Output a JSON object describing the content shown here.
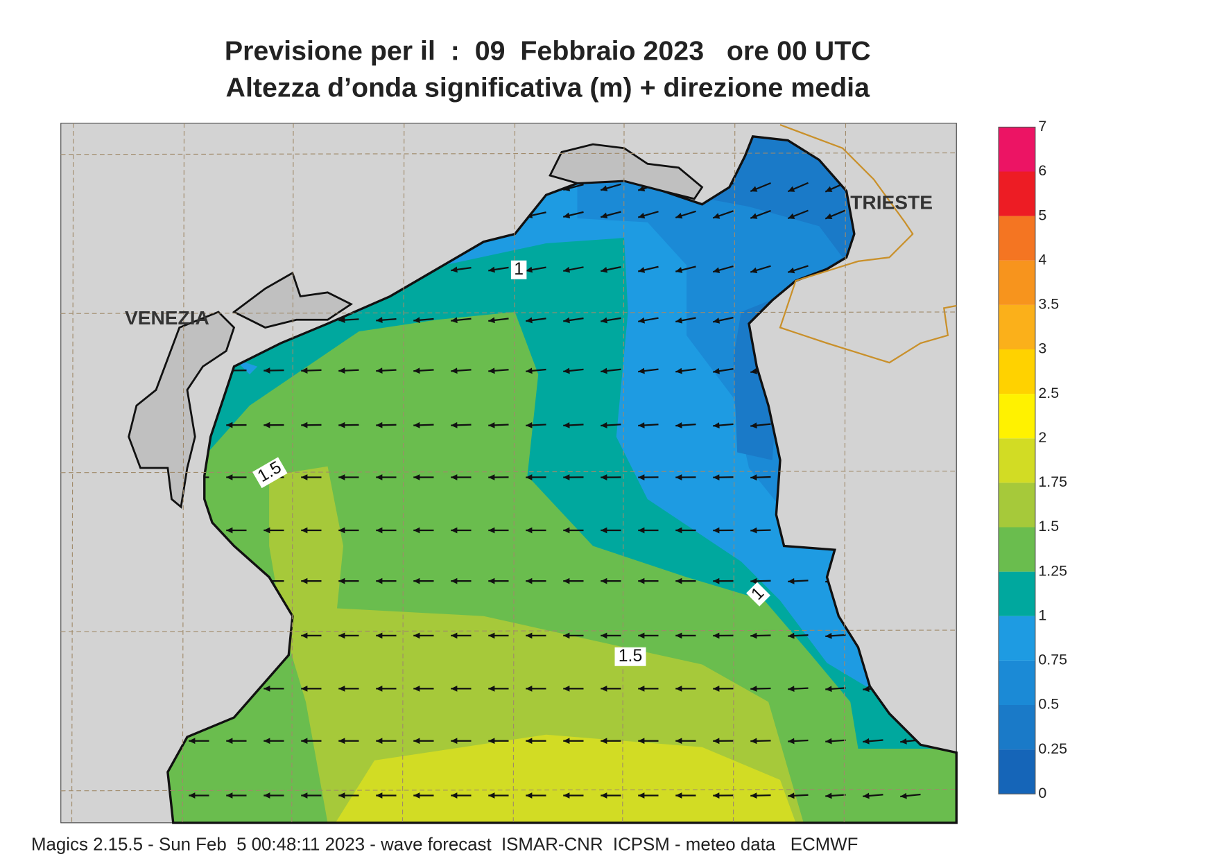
{
  "title": {
    "line1": "Previsione per il  :  09  Febbraio 2023   ore 00 UTC",
    "line2": "Altezza d’onda significativa (m) + direzione media"
  },
  "places": [
    "VENEZIA",
    "TRIESTE"
  ],
  "contour_labels": [
    1,
    1.5,
    1,
    1.5
  ],
  "colorbar": {
    "levels": [
      0,
      0.25,
      0.5,
      0.75,
      1,
      1.25,
      1.5,
      1.75,
      2,
      2.5,
      3,
      3.5,
      4,
      5,
      6,
      7
    ],
    "colors": [
      "#1565b8",
      "#1a7ac8",
      "#1b8ad6",
      "#1e9be2",
      "#00a89e",
      "#6abd4e",
      "#a6c93a",
      "#d2dc24",
      "#fff200",
      "#ffd200",
      "#fbb01a",
      "#f7941d",
      "#f47522",
      "#ed1c24",
      "#ec1464"
    ]
  },
  "footer": "Magics 2.15.5 - Sun Feb  5 00:48:11 2023 - wave forecast  ISMAR-CNR  ICPSM - meteo data   ECMWF"
}
